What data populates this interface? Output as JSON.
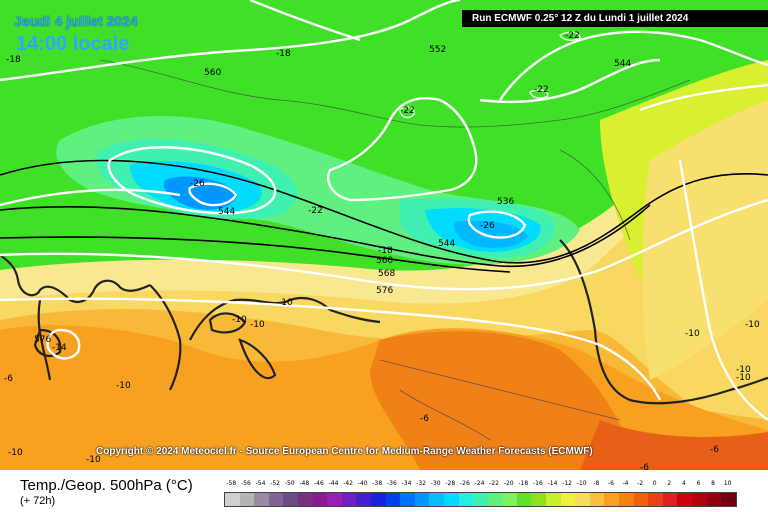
{
  "header": {
    "date": "Jeudi 4 juillet 2024",
    "local_time": "14:00 locale",
    "run_info": "Run ECMWF 0.25° 12 Z du Lundi 1 juillet 2024"
  },
  "copyright": "Copyright © 2024 Meteociel.fr - Source European Centre for Medium-Range Weather Forecasts (ECMWF)",
  "footer": {
    "parameter": "Temp./Geop. 500hPa (°C)",
    "forecast_offset": "(+ 72h)"
  },
  "legend": {
    "labels": [
      "-58",
      "-56",
      "-54",
      "-52",
      "-50",
      "-48",
      "-46",
      "-44",
      "-42",
      "-40",
      "-38",
      "-36",
      "-34",
      "-32",
      "-30",
      "-28",
      "-26",
      "-24",
      "-22",
      "-20",
      "-18",
      "-16",
      "-14",
      "-12",
      "-10",
      "-8",
      "-6",
      "-4",
      "-2",
      "0",
      "2",
      "4",
      "6",
      "8",
      "10"
    ],
    "colors": [
      "#d0d0d0",
      "#b4b4b4",
      "#9a8aa6",
      "#7e6692",
      "#6c4a86",
      "#7a3080",
      "#8a1a90",
      "#9a20b0",
      "#7020c0",
      "#4020d0",
      "#1a20e0",
      "#0040f0",
      "#0070ff",
      "#0098ff",
      "#00c0ff",
      "#00dcff",
      "#20f0e0",
      "#40f0b0",
      "#60f080",
      "#80f060",
      "#60e030",
      "#90e020",
      "#c8f028",
      "#f0f040",
      "#f8dc60",
      "#f8c040",
      "#f8a020",
      "#f88010",
      "#f06010",
      "#e84018",
      "#e02020",
      "#d00010",
      "#b00010",
      "#900010",
      "#700010"
    ]
  },
  "map_labels": {
    "temperature": [
      "-18",
      "-18",
      "-22",
      "-22",
      "-22",
      "-22",
      "-26",
      "-26",
      "-18",
      "-10",
      "-10",
      "-10",
      "-10",
      "-14",
      "-6",
      "-10",
      "-10",
      "-6",
      "-10",
      "-10",
      "-10",
      "-6",
      "-10",
      "-6",
      "-22"
    ],
    "geopotential": [
      "552",
      "560",
      "544",
      "544",
      "536",
      "544",
      "560",
      "568",
      "576",
      "576",
      "544",
      "536"
    ]
  }
}
